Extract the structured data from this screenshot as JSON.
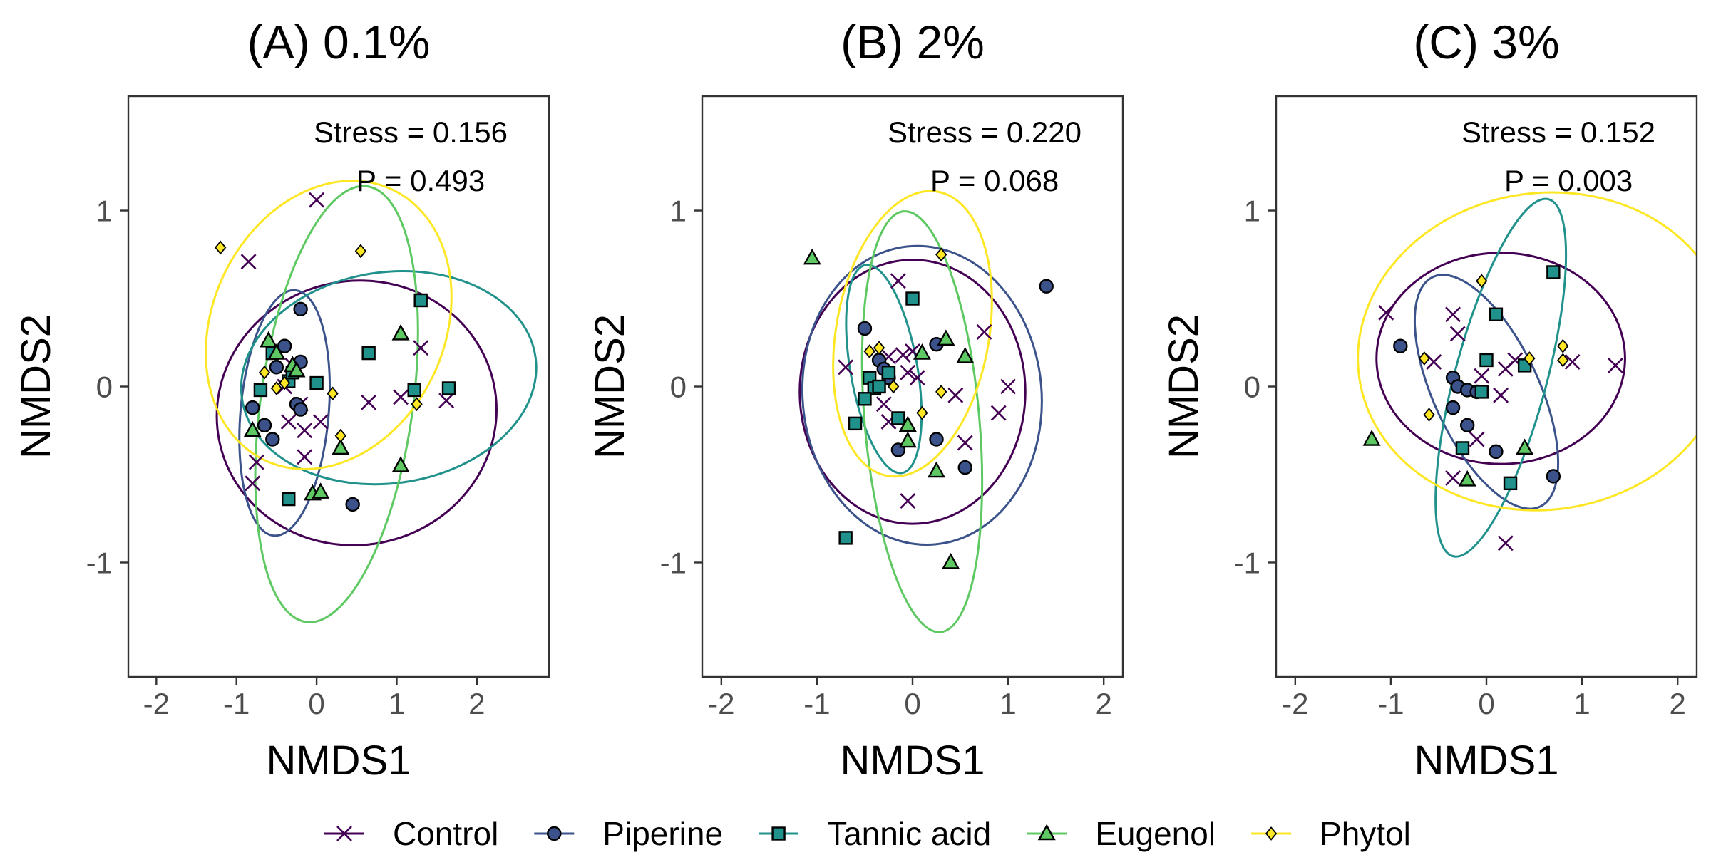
{
  "legend": {
    "placement": "bottom",
    "items": [
      {
        "name": "Control",
        "color": "#440154",
        "marker": "x"
      },
      {
        "name": "Piperine",
        "color": "#3b528b",
        "marker": "circle"
      },
      {
        "name": "Tannic acid",
        "color": "#21918c",
        "marker": "square"
      },
      {
        "name": "Eugenol",
        "color": "#5ec962",
        "marker": "triangle"
      },
      {
        "name": "Phytol",
        "color": "#fde725",
        "marker": "diamond"
      }
    ]
  },
  "chart_data": [
    {
      "type": "scatter",
      "title": "(A) 0.1%",
      "xlabel": "NMDS1",
      "ylabel": "NMDS2",
      "xlim": [
        -2.35,
        2.9
      ],
      "ylim": [
        -1.65,
        1.65
      ],
      "xticks": [
        -2,
        -1,
        0,
        1,
        2
      ],
      "yticks": [
        -1,
        0,
        1
      ],
      "grid": false,
      "annotations": [
        "Stress = 0.156",
        "P = 0.493"
      ],
      "ellipses": [
        {
          "series": "Control",
          "cx": 0.5,
          "cy": -0.15,
          "rx": 1.75,
          "ry": 0.75,
          "angle": 12
        },
        {
          "series": "Piperine",
          "cx": -0.4,
          "cy": -0.15,
          "rx": 0.55,
          "ry": 0.7,
          "angle": -5
        },
        {
          "series": "Tannic acid",
          "cx": 0.9,
          "cy": 0.05,
          "rx": 1.85,
          "ry": 0.6,
          "angle": 8
        },
        {
          "series": "Eugenol",
          "cx": 0.25,
          "cy": -0.1,
          "rx": 0.95,
          "ry": 1.25,
          "angle": -8
        },
        {
          "series": "Phytol",
          "cx": 0.15,
          "cy": 0.35,
          "rx": 1.45,
          "ry": 0.85,
          "angle": -25
        }
      ],
      "series": [
        {
          "name": "Control",
          "points": [
            [
              0.0,
              1.06
            ],
            [
              -0.85,
              0.71
            ],
            [
              -0.3,
              0.12
            ],
            [
              -0.4,
              0.0
            ],
            [
              -0.2,
              -0.1
            ],
            [
              -0.15,
              -0.25
            ],
            [
              0.05,
              -0.2
            ],
            [
              -0.15,
              -0.4
            ],
            [
              -0.75,
              -0.43
            ],
            [
              -0.8,
              -0.55
            ],
            [
              -0.35,
              -0.2
            ],
            [
              0.65,
              -0.09
            ],
            [
              1.05,
              -0.06
            ],
            [
              1.3,
              0.22
            ],
            [
              1.62,
              -0.08
            ]
          ]
        },
        {
          "name": "Piperine",
          "points": [
            [
              -0.2,
              0.44
            ],
            [
              -0.4,
              0.23
            ],
            [
              -0.5,
              0.11
            ],
            [
              -0.2,
              0.14
            ],
            [
              -0.25,
              -0.1
            ],
            [
              -0.2,
              -0.13
            ],
            [
              -0.8,
              -0.12
            ],
            [
              -0.65,
              -0.22
            ],
            [
              -0.55,
              -0.3
            ],
            [
              0.45,
              -0.67
            ]
          ]
        },
        {
          "name": "Tannic acid",
          "points": [
            [
              -0.55,
              0.19
            ],
            [
              -0.7,
              -0.02
            ],
            [
              -0.35,
              0.03
            ],
            [
              -0.3,
              0.08
            ],
            [
              0.0,
              0.02
            ],
            [
              0.65,
              0.19
            ],
            [
              -0.35,
              -0.64
            ],
            [
              1.3,
              0.49
            ],
            [
              1.22,
              -0.02
            ],
            [
              1.65,
              -0.01
            ]
          ]
        },
        {
          "name": "Eugenol",
          "points": [
            [
              -0.6,
              0.26
            ],
            [
              -0.5,
              0.19
            ],
            [
              -0.3,
              0.12
            ],
            [
              -0.25,
              0.09
            ],
            [
              -0.8,
              -0.25
            ],
            [
              -0.05,
              -0.61
            ],
            [
              0.05,
              -0.6
            ],
            [
              0.3,
              -0.35
            ],
            [
              1.05,
              0.3
            ],
            [
              1.05,
              -0.45
            ]
          ]
        },
        {
          "name": "Phytol",
          "points": [
            [
              -1.2,
              0.79
            ],
            [
              0.55,
              0.77
            ],
            [
              -0.65,
              0.08
            ],
            [
              -0.4,
              0.02
            ],
            [
              -0.5,
              -0.01
            ],
            [
              0.2,
              -0.04
            ],
            [
              0.3,
              -0.28
            ],
            [
              1.25,
              -0.1
            ]
          ]
        }
      ]
    },
    {
      "type": "scatter",
      "title": "(B) 2%",
      "xlabel": "NMDS1",
      "ylabel": "NMDS2",
      "xlim": [
        -2.2,
        2.2
      ],
      "ylim": [
        -1.65,
        1.65
      ],
      "xticks": [
        -2,
        -1,
        0,
        1,
        2
      ],
      "yticks": [
        -1,
        0,
        1
      ],
      "grid": false,
      "annotations": [
        "Stress = 0.220",
        "P = 0.068"
      ],
      "ellipses": [
        {
          "series": "Control",
          "cx": 0.0,
          "cy": -0.03,
          "rx": 1.18,
          "ry": 0.75,
          "angle": 0
        },
        {
          "series": "Piperine",
          "cx": 0.1,
          "cy": -0.05,
          "rx": 1.25,
          "ry": 0.85,
          "angle": 5
        },
        {
          "series": "Tannic acid",
          "cx": -0.3,
          "cy": 0.1,
          "rx": 0.35,
          "ry": 0.6,
          "angle": 10
        },
        {
          "series": "Eugenol",
          "cx": 0.1,
          "cy": -0.2,
          "rx": 0.6,
          "ry": 1.2,
          "angle": 5
        },
        {
          "series": "Phytol",
          "cx": 0.0,
          "cy": 0.3,
          "rx": 0.8,
          "ry": 0.82,
          "angle": -10
        }
      ],
      "series": [
        {
          "name": "Control",
          "points": [
            [
              -0.15,
              0.6
            ],
            [
              -0.7,
              0.11
            ],
            [
              -0.25,
              0.17
            ],
            [
              -0.1,
              0.18
            ],
            [
              0.0,
              0.2
            ],
            [
              0.05,
              0.05
            ],
            [
              -0.05,
              0.08
            ],
            [
              -0.3,
              -0.1
            ],
            [
              -0.25,
              -0.2
            ],
            [
              -0.05,
              -0.65
            ],
            [
              0.45,
              -0.05
            ],
            [
              0.55,
              -0.32
            ],
            [
              0.75,
              0.31
            ],
            [
              0.9,
              -0.15
            ],
            [
              1.0,
              0.0
            ]
          ]
        },
        {
          "name": "Piperine",
          "points": [
            [
              -0.5,
              0.33
            ],
            [
              -0.35,
              0.15
            ],
            [
              -0.3,
              0.1
            ],
            [
              -0.25,
              0.05
            ],
            [
              0.25,
              0.24
            ],
            [
              -0.15,
              -0.36
            ],
            [
              0.25,
              -0.3
            ],
            [
              0.55,
              -0.46
            ],
            [
              1.4,
              0.57
            ]
          ]
        },
        {
          "name": "Tannic acid",
          "points": [
            [
              0.0,
              0.5
            ],
            [
              -0.45,
              0.05
            ],
            [
              -0.4,
              -0.01
            ],
            [
              -0.35,
              0.0
            ],
            [
              -0.5,
              -0.07
            ],
            [
              -0.25,
              0.08
            ],
            [
              -0.6,
              -0.21
            ],
            [
              -0.15,
              -0.18
            ],
            [
              -0.7,
              -0.86
            ]
          ]
        },
        {
          "name": "Eugenol",
          "points": [
            [
              -1.05,
              0.73
            ],
            [
              0.1,
              0.19
            ],
            [
              0.35,
              0.27
            ],
            [
              0.55,
              0.17
            ],
            [
              -0.05,
              -0.22
            ],
            [
              -0.05,
              -0.31
            ],
            [
              0.25,
              -0.48
            ],
            [
              0.4,
              -1.0
            ]
          ]
        },
        {
          "name": "Phytol",
          "points": [
            [
              -0.45,
              0.2
            ],
            [
              -0.35,
              0.22
            ],
            [
              0.3,
              0.75
            ],
            [
              0.3,
              -0.03
            ],
            [
              -0.2,
              0.0
            ],
            [
              0.1,
              -0.15
            ]
          ]
        }
      ]
    },
    {
      "type": "scatter",
      "title": "(C) 3%",
      "xlabel": "NMDS1",
      "ylabel": "NMDS2",
      "xlim": [
        -2.2,
        2.2
      ],
      "ylim": [
        -1.65,
        1.65
      ],
      "xticks": [
        -2,
        -1,
        0,
        1,
        2
      ],
      "yticks": [
        -1,
        0,
        1
      ],
      "grid": false,
      "annotations": [
        "Stress = 0.152",
        "P = 0.003"
      ],
      "ellipses": [
        {
          "series": "Control",
          "cx": 0.15,
          "cy": 0.16,
          "rx": 1.3,
          "ry": 0.6,
          "angle": 0
        },
        {
          "series": "Piperine",
          "cx": 0.0,
          "cy": -0.03,
          "rx": 0.55,
          "ry": 0.72,
          "angle": 25
        },
        {
          "series": "Tannic acid",
          "cx": 0.15,
          "cy": 0.05,
          "rx": 0.48,
          "ry": 1.05,
          "angle": -15
        },
        {
          "series": "Phytol",
          "cx": 0.6,
          "cy": 0.2,
          "rx": 1.95,
          "ry": 0.9,
          "angle": 8
        }
      ],
      "series": [
        {
          "name": "Control",
          "points": [
            [
              -1.05,
              0.42
            ],
            [
              -0.35,
              0.41
            ],
            [
              -0.3,
              0.3
            ],
            [
              -0.55,
              0.14
            ],
            [
              -0.05,
              0.06
            ],
            [
              0.2,
              0.1
            ],
            [
              0.3,
              0.15
            ],
            [
              0.15,
              -0.05
            ],
            [
              0.9,
              0.14
            ],
            [
              1.35,
              0.12
            ],
            [
              -0.35,
              -0.52
            ],
            [
              0.2,
              -0.89
            ],
            [
              -0.1,
              -0.3
            ]
          ]
        },
        {
          "name": "Piperine",
          "points": [
            [
              -0.9,
              0.23
            ],
            [
              -0.35,
              0.05
            ],
            [
              -0.3,
              0.0
            ],
            [
              -0.2,
              -0.02
            ],
            [
              -0.1,
              -0.03
            ],
            [
              -0.35,
              -0.12
            ],
            [
              -0.2,
              -0.22
            ],
            [
              0.1,
              -0.37
            ],
            [
              0.7,
              -0.51
            ]
          ]
        },
        {
          "name": "Tannic acid",
          "points": [
            [
              0.0,
              0.15
            ],
            [
              0.1,
              0.41
            ],
            [
              0.7,
              0.65
            ],
            [
              0.4,
              0.12
            ],
            [
              -0.05,
              -0.03
            ],
            [
              -0.25,
              -0.35
            ],
            [
              0.25,
              -0.55
            ]
          ]
        },
        {
          "name": "Eugenol",
          "points": [
            [
              -1.2,
              -0.3
            ],
            [
              -0.2,
              -0.53
            ],
            [
              0.4,
              -0.35
            ]
          ]
        },
        {
          "name": "Phytol",
          "points": [
            [
              -0.05,
              0.6
            ],
            [
              -0.65,
              0.16
            ],
            [
              -0.6,
              -0.16
            ],
            [
              0.45,
              0.16
            ],
            [
              0.8,
              0.23
            ],
            [
              0.8,
              0.15
            ]
          ]
        }
      ]
    }
  ]
}
